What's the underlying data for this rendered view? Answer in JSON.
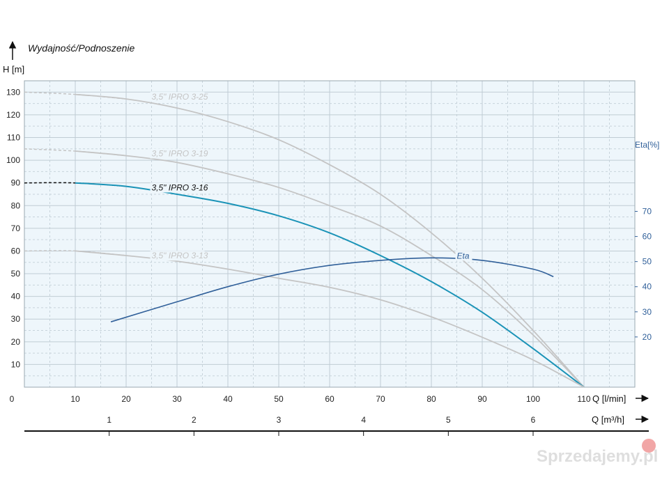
{
  "chart_data": {
    "type": "line",
    "title": "Wydajność/Podnoszenie",
    "ylabel": "H [m]",
    "y2label": "Eta[%]",
    "xlabel": "Q  [l/min]",
    "x2label": "Q  [m³/h]",
    "xlim": [
      0,
      120
    ],
    "ylim": [
      0,
      135
    ],
    "y2lim": [
      0,
      122
    ],
    "x_ticks": [
      "0",
      "10",
      "20",
      "30",
      "40",
      "50",
      "60",
      "70",
      "80",
      "90",
      "100",
      "110"
    ],
    "x2_ticks": [
      "1",
      "2",
      "3",
      "4",
      "5",
      "6"
    ],
    "y_ticks": [
      "10",
      "20",
      "30",
      "40",
      "50",
      "60",
      "70",
      "80",
      "90",
      "100",
      "110",
      "120",
      "130"
    ],
    "y2_ticks": [
      "20",
      "30",
      "40",
      "50",
      "60",
      "70"
    ],
    "grid": true,
    "series": [
      {
        "name": "3,5\" IPRO 3-25",
        "color": "#c4c4c4",
        "axis": "left",
        "x": [
          0,
          10,
          20,
          30,
          40,
          50,
          60,
          70,
          80,
          90,
          100,
          110
        ],
        "y": [
          130,
          129,
          127,
          123,
          117,
          109,
          98,
          85,
          68,
          48,
          25,
          0
        ]
      },
      {
        "name": "3,5\" IPRO 3-19",
        "color": "#c4c4c4",
        "axis": "left",
        "x": [
          0,
          10,
          20,
          30,
          40,
          50,
          60,
          70,
          80,
          90,
          100,
          110
        ],
        "y": [
          105,
          104,
          102,
          99,
          94,
          88,
          80,
          71,
          58,
          43,
          23,
          0
        ]
      },
      {
        "name": "3,5\" IPRO 3-16",
        "color": "#1a93b7",
        "axis": "left",
        "x": [
          0,
          10,
          20,
          30,
          40,
          50,
          60,
          70,
          80,
          90,
          100,
          110
        ],
        "y": [
          90,
          90,
          88.5,
          85,
          81,
          75.5,
          68,
          58,
          46.5,
          33,
          17,
          0
        ]
      },
      {
        "name": "3,5\" IPRO 3-13",
        "color": "#c4c4c4",
        "axis": "left",
        "x": [
          0,
          10,
          20,
          30,
          40,
          50,
          60,
          70,
          80,
          90,
          100,
          110
        ],
        "y": [
          60,
          60,
          58,
          55.5,
          52,
          48,
          44,
          38.5,
          31,
          22,
          12,
          0
        ]
      },
      {
        "name": "Eta",
        "color": "#2f5f99",
        "axis": "right",
        "x": [
          17,
          30,
          40,
          50,
          60,
          70,
          80,
          90,
          100,
          104
        ],
        "y": [
          26,
          34,
          40,
          45,
          48.5,
          50.5,
          51.5,
          50.5,
          47,
          44
        ]
      }
    ]
  },
  "watermark": "Sprzedajemy.pl"
}
